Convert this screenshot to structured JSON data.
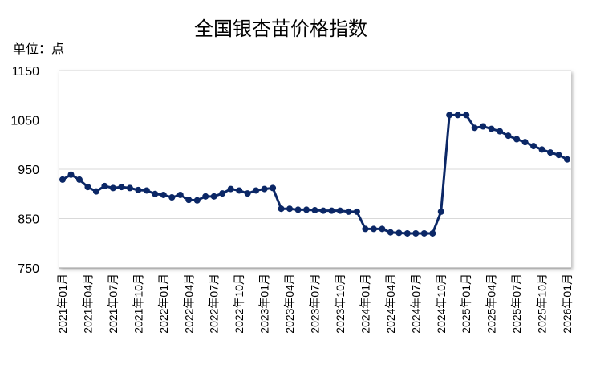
{
  "chart_data": {
    "type": "line",
    "title": "全国银杏苗价格指数",
    "y_label": "单位：点",
    "categories": [
      "2021年01月",
      null,
      null,
      "2021年04月",
      null,
      null,
      "2021年07月",
      null,
      null,
      "2021年10月",
      null,
      null,
      "2022年01月",
      null,
      null,
      "2022年04月",
      null,
      null,
      "2022年07月",
      null,
      null,
      "2022年10月",
      null,
      null,
      "2023年01月",
      null,
      null,
      "2023年04月",
      null,
      null,
      "2023年07月",
      null,
      null,
      "2023年10月",
      null,
      null,
      "2024年01月",
      null,
      null,
      "2024年04月",
      null,
      null,
      "2024年07月",
      null,
      null,
      "2024年10月",
      null,
      null,
      "2025年01月",
      null,
      null,
      "2025年04月",
      null,
      null,
      "2025年07月",
      null,
      null,
      "2025年10月",
      null,
      null,
      "2026年01月"
    ],
    "values": [
      929,
      939,
      929,
      914,
      905,
      916,
      912,
      914,
      912,
      908,
      907,
      900,
      898,
      893,
      898,
      888,
      887,
      895,
      895,
      901,
      910,
      907,
      901,
      907,
      910,
      912,
      870,
      870,
      868,
      868,
      867,
      866,
      866,
      866,
      864,
      864,
      829,
      829,
      829,
      822,
      821,
      820,
      820,
      820,
      820,
      864,
      1060,
      1060,
      1060,
      1034,
      1037,
      1032,
      1027,
      1018,
      1011,
      1005,
      997,
      990,
      984,
      979,
      970
    ],
    "color": "#0b2766",
    "ylim": [
      750,
      1150
    ],
    "yticks": [
      750,
      850,
      950,
      1050,
      1150
    ],
    "grid": true
  }
}
